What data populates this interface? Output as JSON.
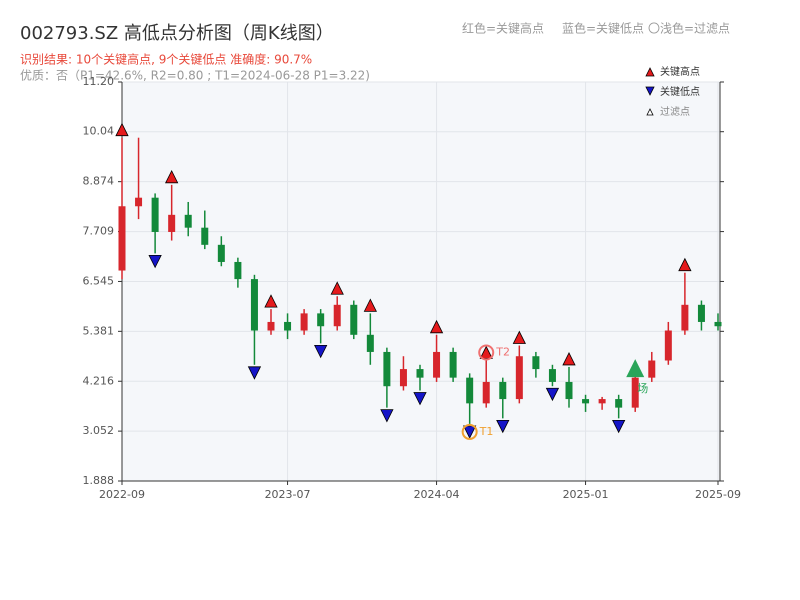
{
  "chart_data": {
    "type": "candlestick",
    "title": "002793.SZ 高低点分析图（周K线图）",
    "subtitle": "识别结果: 10个关键高点, 9个关键低点  准确度: 90.7%",
    "note": "优质：否（P1=42.6%, R2=0.80 ; T1=2024-06-28 P1=3.22)",
    "top_legend": [
      "红色=关键高点",
      "蓝色=关键低点",
      "〇浅色=过滤点"
    ],
    "legend": [
      "关键高点",
      "关键低点",
      "过滤点"
    ],
    "up_color": "#d7262c",
    "down_color": "#13893a",
    "high_color": "#e41a1c",
    "low_color": "#1515c8",
    "filtered_color": "#2aa55a",
    "grid": true,
    "categories": [
      "2022-09",
      "2022-10",
      "2022-11",
      "2022-12",
      "2023-01",
      "2023-02",
      "2023-03",
      "2023-04",
      "2023-05",
      "2023-06",
      "2023-07",
      "2023-08",
      "2023-09",
      "2023-10",
      "2023-11",
      "2023-12",
      "2024-01",
      "2024-02",
      "2024-03",
      "2024-04",
      "2024-05",
      "2024-06",
      "2024-07",
      "2024-08",
      "2024-09",
      "2024-10",
      "2024-11",
      "2024-12",
      "2025-01",
      "2025-02",
      "2025-03",
      "2025-04",
      "2025-05",
      "2025-06",
      "2025-07",
      "2025-08",
      "2025-09"
    ],
    "open": [
      6.8,
      8.3,
      8.5,
      7.7,
      8.1,
      7.8,
      7.4,
      7.0,
      6.6,
      5.4,
      5.6,
      5.4,
      5.8,
      5.5,
      6.0,
      5.3,
      4.9,
      4.1,
      4.5,
      4.3,
      4.9,
      4.3,
      3.7,
      4.2,
      3.8,
      4.8,
      4.5,
      4.2,
      3.8,
      3.7,
      3.8,
      3.6,
      4.3,
      4.7,
      5.4,
      6.0,
      5.6
    ],
    "high": [
      9.9,
      9.9,
      8.6,
      8.8,
      8.4,
      8.2,
      7.6,
      7.1,
      6.7,
      5.9,
      5.8,
      5.9,
      5.9,
      6.2,
      6.1,
      5.8,
      5.0,
      4.8,
      4.6,
      5.3,
      5.0,
      4.4,
      4.7,
      4.3,
      5.05,
      4.9,
      4.6,
      4.55,
      3.9,
      3.85,
      3.9,
      4.5,
      4.9,
      5.6,
      6.75,
      6.1,
      5.8
    ],
    "low": [
      6.6,
      8.0,
      7.2,
      7.5,
      7.6,
      7.3,
      6.9,
      6.4,
      4.6,
      5.3,
      5.2,
      5.3,
      5.1,
      5.4,
      5.2,
      4.6,
      3.6,
      4.0,
      4.0,
      4.2,
      4.2,
      3.22,
      3.6,
      3.35,
      3.7,
      4.3,
      4.1,
      3.6,
      3.5,
      3.55,
      3.35,
      3.5,
      4.2,
      4.6,
      5.3,
      5.4,
      5.4
    ],
    "close": [
      8.3,
      8.5,
      7.7,
      8.1,
      7.8,
      7.4,
      7.0,
      6.6,
      5.4,
      5.6,
      5.4,
      5.8,
      5.5,
      6.0,
      5.3,
      4.9,
      4.1,
      4.5,
      4.3,
      4.9,
      4.3,
      3.7,
      4.2,
      3.8,
      4.8,
      4.5,
      4.2,
      3.8,
      3.7,
      3.8,
      3.6,
      4.3,
      4.7,
      5.4,
      6.0,
      5.6,
      5.5
    ],
    "highs": [
      {
        "date": "2022-09",
        "value": 9.9
      },
      {
        "date": "2022-12",
        "value": 8.8
      },
      {
        "date": "2023-06",
        "value": 5.9
      },
      {
        "date": "2023-10",
        "value": 6.2
      },
      {
        "date": "2023-12",
        "value": 5.8
      },
      {
        "date": "2024-04",
        "value": 5.3
      },
      {
        "date": "2024-07",
        "value": 4.7
      },
      {
        "date": "2024-09",
        "value": 5.05
      },
      {
        "date": "2024-12",
        "value": 4.55
      },
      {
        "date": "2025-07",
        "value": 6.75
      }
    ],
    "lows": [
      {
        "date": "2022-11",
        "value": 7.2
      },
      {
        "date": "2023-05",
        "value": 4.6
      },
      {
        "date": "2023-09",
        "value": 5.1
      },
      {
        "date": "2024-01",
        "value": 3.6
      },
      {
        "date": "2024-03",
        "value": 4.0
      },
      {
        "date": "2024-06",
        "value": 3.22
      },
      {
        "date": "2024-08",
        "value": 3.35
      },
      {
        "date": "2024-11",
        "value": 4.1
      },
      {
        "date": "2025-03",
        "value": 3.35
      }
    ],
    "annotations": [
      {
        "label": "T1",
        "date": "2024-06",
        "value": 3.22,
        "color": "#f0a030"
      },
      {
        "label": "T2",
        "date": "2024-07",
        "value": 4.7,
        "color": "#f07070"
      }
    ],
    "filtered": [
      {
        "label": "场",
        "date": "2025-04",
        "value": 4.5
      }
    ],
    "ylim": [
      1.888,
      11.2
    ],
    "yticks": [
      1.888,
      3.052,
      4.216,
      5.381,
      6.545,
      7.709,
      8.874,
      10.04,
      {
        "value": 11.2,
        "label": "11.20"
      }
    ],
    "xticks": [
      "2022-09",
      "2023-07",
      "2024-04",
      "2025-01",
      "2025-09"
    ]
  }
}
